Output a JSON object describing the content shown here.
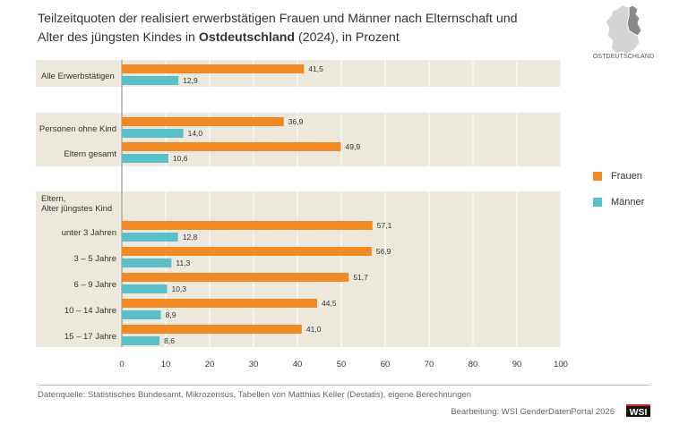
{
  "header": {
    "title_part1": "Teilzeitquoten der realisiert erwerbstätigen Frauen und Männer nach Elternschaft und",
    "title_part2": "Alter des jüngsten Kindes in ",
    "title_bold": "Ostdeutschland",
    "title_part3": " (2024), in Prozent"
  },
  "map": {
    "label": "OSTDEUTSCHLAND",
    "icon": "germany-map-icon"
  },
  "legend": [
    {
      "label": "Frauen",
      "color": "#f08a24"
    },
    {
      "label": "Männer",
      "color": "#5bbfca"
    }
  ],
  "colors": {
    "frauen": "#f08a24",
    "maenner": "#5bbfca",
    "band": "#ece9dc",
    "grid": "#ffffff"
  },
  "chart_data": {
    "type": "bar",
    "orientation": "horizontal",
    "section_header": "Eltern,\nAlter jüngstes Kind",
    "categories": [
      "Alle Erwerbstätigen",
      "Personen ohne Kind",
      "Eltern gesamt",
      "unter 3 Jahren",
      "3 – 5 Jahre",
      "6 – 9 Jahre",
      "10 – 14 Jahre",
      "15 – 17 Jahre"
    ],
    "series": [
      {
        "name": "Frauen",
        "values": [
          41.5,
          36.9,
          49.9,
          57.1,
          56.9,
          51.7,
          44.5,
          41.0
        ],
        "labels": [
          "41,5",
          "36,9",
          "49,9",
          "57,1",
          "56,9",
          "51,7",
          "44,5",
          "41,0"
        ]
      },
      {
        "name": "Männer",
        "values": [
          12.9,
          14.0,
          10.6,
          12.8,
          11.3,
          10.3,
          8.9,
          8.6
        ],
        "labels": [
          "12,9",
          "14,0",
          "10,6",
          "12,8",
          "11,3",
          "10,3",
          "8,9",
          "8,6"
        ]
      }
    ],
    "xlim": [
      0,
      100
    ],
    "xticks": [
      0,
      10,
      20,
      30,
      40,
      50,
      60,
      70,
      80,
      90,
      100
    ],
    "grid": true,
    "legend_position": "right"
  },
  "footer": {
    "source": "Datenquelle: Statistisches Bundesamt, Mikrozensus, Tabellen von Matthias Keller (Destatis), eigene Berechnungen",
    "credit": "Bearbeitung: WSI GenderDatenPortal 2026",
    "logo": "WSI"
  }
}
